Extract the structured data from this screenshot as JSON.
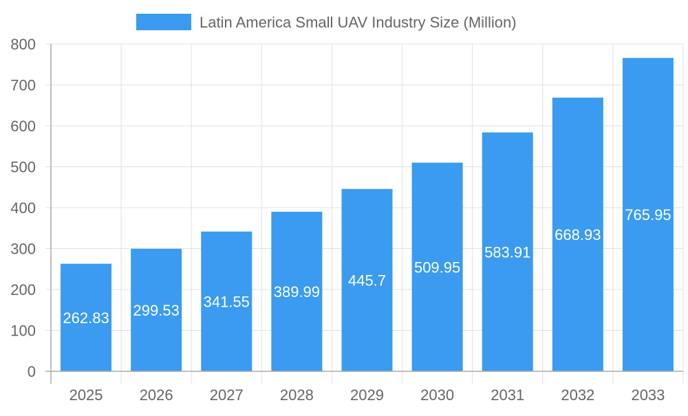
{
  "chart_data": {
    "type": "bar",
    "categories": [
      "2025",
      "2026",
      "2027",
      "2028",
      "2029",
      "2030",
      "2031",
      "2032",
      "2033"
    ],
    "series": [
      {
        "name": "Latin America Small UAV Industry Size (Million)",
        "values": [
          262.83,
          299.53,
          341.55,
          389.99,
          445.7,
          509.95,
          583.91,
          668.93,
          765.95
        ]
      }
    ],
    "data_labels": [
      "262.83",
      "299.53",
      "341.55",
      "389.99",
      "445.7",
      "509.95",
      "583.91",
      "668.93",
      "765.95"
    ],
    "yticks": [
      "0",
      "100",
      "200",
      "300",
      "400",
      "500",
      "600",
      "700",
      "800"
    ],
    "ylim": [
      0,
      800
    ],
    "grid": true,
    "legend": "top-center",
    "colors": {
      "bar": "#3a9bf0",
      "grid": "#e0e0e0",
      "text": "#666666"
    }
  }
}
